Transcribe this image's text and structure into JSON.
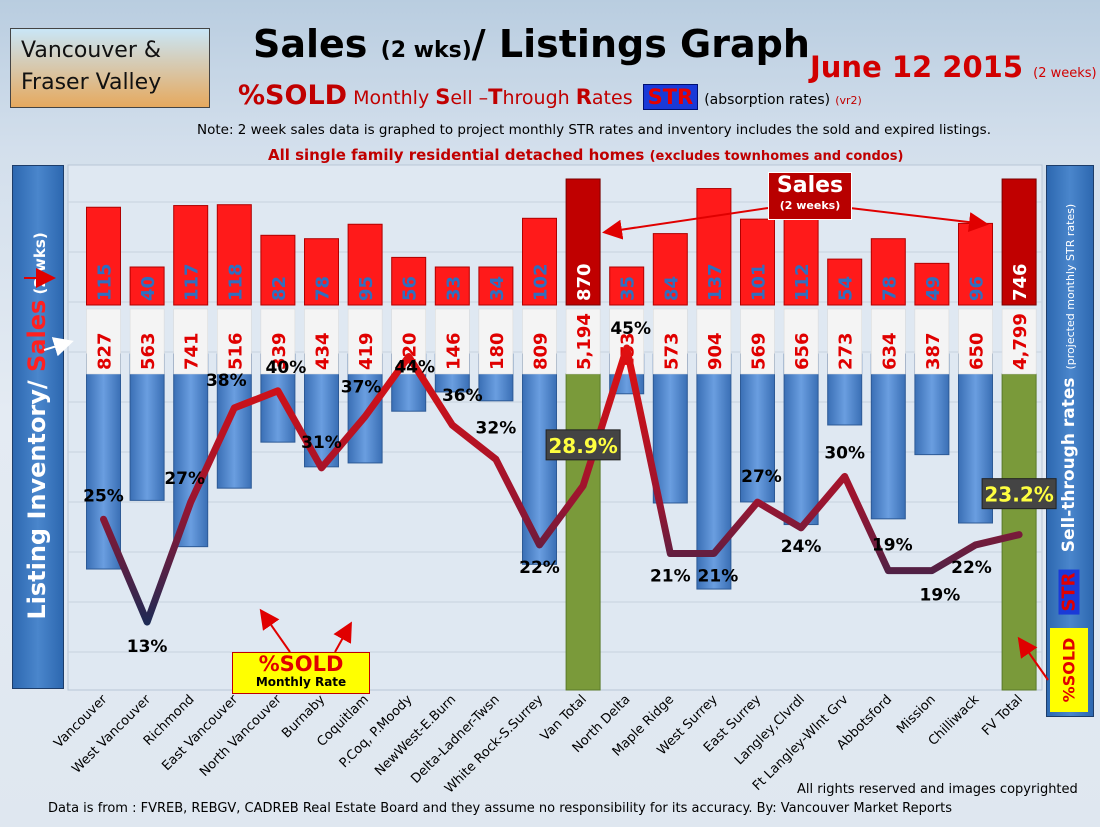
{
  "header": {
    "region_line1": "Vancouver &",
    "region_line2": "Fraser Valley",
    "title_main": "Sales ",
    "title_small": "(2 wks)",
    "title_rest": "/ Listings Graph",
    "date_main": "June 12 2015",
    "date_small": "(2 weeks)",
    "subtitle_sold": "%SOLD",
    "subtitle_monthly": " Monthly ",
    "subtitle_s": "S",
    "subtitle_ell": "ell –",
    "subtitle_t": "T",
    "subtitle_hrough": "hrough ",
    "subtitle_r": "R",
    "subtitle_ates": "ates",
    "subtitle_str": "STR",
    "subtitle_absorption": "(absorption rates)",
    "subtitle_vr": "(vr2)",
    "note": "Note: 2 week sales data is graphed to project monthly STR rates and inventory includes the sold and expired listings.",
    "exclusion_main": "All single family residential detached homes ",
    "exclusion_small": "(excludes townhomes and condos)"
  },
  "side_labels": {
    "left_inventory": "Listing Inventory/ ",
    "left_sales": "Sales",
    "left_wks": " (2 wks)",
    "right_title": "Sell-through rates",
    "right_projected": "(projected monthly STR rates)",
    "right_str": "STR",
    "right_sold": "%SOLD"
  },
  "callouts": {
    "sold_box_main": "%SOLD",
    "sold_box_sub": "Monthly Rate",
    "sales_box_main": "Sales",
    "sales_box_sub": "(2 weeks)"
  },
  "footer": {
    "copyright": "All rights reserved and  images copyrighted",
    "source": "Data is from : FVREB, REBGV, CADREB Real Estate Board and they assume no responsibility for its accuracy.  By: Vancouver Market Reports"
  },
  "colors": {
    "sales_bar": "#ff1a1a",
    "sales_total_bar": "#c00000",
    "inventory_bar": "#4f86cc",
    "total_inventory_bar": "#7a9a3a",
    "sales_label": "#2f6fc0",
    "inventory_label": "#e00000",
    "line_high": "#e01010",
    "line_low": "#1c2a55",
    "total_pct_label": "#ffff40"
  },
  "chart_data": {
    "type": "bar",
    "categories": [
      "Vancouver",
      "West Vancouver",
      "Richmond",
      "East Vancouver",
      "North Vancouver",
      "Burnaby",
      "Coquitlam",
      "P.Coq, P.Moody",
      "NewWest-E.Burn",
      "Delta-Ladner-Twsn",
      "White Rock-S.Surrey",
      "Van Total",
      "North Delta",
      "Maple Ridge",
      "West Surrey",
      "East Surrey",
      "Langley,Clvrdl",
      "Ft Langley-Wlnt Grv",
      "Abbotsford",
      "Mission",
      "Chilliwack",
      "FV Total"
    ],
    "series": [
      {
        "name": "Sales",
        "values": [
          115,
          40,
          117,
          118,
          82,
          78,
          95,
          56,
          33,
          34,
          102,
          870,
          35,
          84,
          137,
          101,
          112,
          54,
          78,
          49,
          96,
          746
        ]
      },
      {
        "name": "Listing Inventory",
        "values": [
          827,
          563,
          741,
          516,
          339,
          434,
          419,
          220,
          146,
          180,
          809,
          "5,194",
          153,
          573,
          904,
          569,
          656,
          273,
          634,
          387,
          650,
          "4,799"
        ]
      },
      {
        "name": "%SOLD",
        "values": [
          25,
          13,
          27,
          38,
          40,
          31,
          37,
          44,
          36,
          32,
          22,
          28.9,
          45,
          21,
          21,
          27,
          24,
          30,
          19,
          19,
          22,
          23.2
        ]
      }
    ],
    "sold_labels": [
      "25%",
      "13%",
      "27%",
      "38%",
      "40%",
      "31%",
      "37%",
      "44%",
      "36%",
      "32%",
      "22%",
      "28.9%",
      "45%",
      "21%",
      "21%",
      "27%",
      "24%",
      "30%",
      "19%",
      "19%",
      "22%",
      "23.2%"
    ],
    "totals": [
      "Van Total",
      "FV Total"
    ]
  }
}
